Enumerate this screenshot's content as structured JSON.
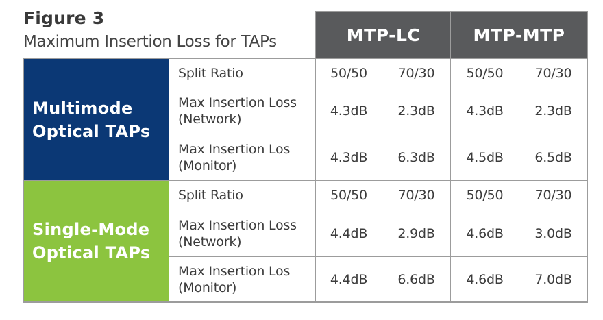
{
  "figure": {
    "title": "Figure 3",
    "subtitle": "Maximum Insertion Loss for TAPs"
  },
  "columns": [
    {
      "label": "MTP-LC"
    },
    {
      "label": "MTP-MTP"
    }
  ],
  "groups": [
    {
      "label_lines": [
        "Multimode",
        "Optical TAPs"
      ],
      "color": "#0b3875",
      "rows": [
        {
          "label_lines": [
            "Split Ratio"
          ],
          "values": [
            "50/50",
            "70/30",
            "50/50",
            "70/30"
          ]
        },
        {
          "label_lines": [
            "Max Insertion Loss",
            "(Network)"
          ],
          "values": [
            "4.3dB",
            "2.3dB",
            "4.3dB",
            "2.3dB"
          ]
        },
        {
          "label_lines": [
            "Max Insertion Los",
            "(Monitor)"
          ],
          "values": [
            "4.3dB",
            "6.3dB",
            "4.5dB",
            "6.5dB"
          ]
        }
      ]
    },
    {
      "label_lines": [
        "Single-Mode",
        "Optical TAPs"
      ],
      "color": "#8cc43f",
      "rows": [
        {
          "label_lines": [
            "Split Ratio"
          ],
          "values": [
            "50/50",
            "70/30",
            "50/50",
            "70/30"
          ]
        },
        {
          "label_lines": [
            "Max Insertion Loss",
            "(Network)"
          ],
          "values": [
            "4.4dB",
            "2.9dB",
            "4.6dB",
            "3.0dB"
          ]
        },
        {
          "label_lines": [
            "Max Insertion Los",
            "(Monitor)"
          ],
          "values": [
            "4.4dB",
            "6.6dB",
            "4.6dB",
            "7.0dB"
          ]
        }
      ]
    }
  ],
  "colors": {
    "header_bg": "#595a5c",
    "grid_line": "#9c9c9c",
    "multimode": "#0b3875",
    "single_mode": "#8cc43f"
  }
}
